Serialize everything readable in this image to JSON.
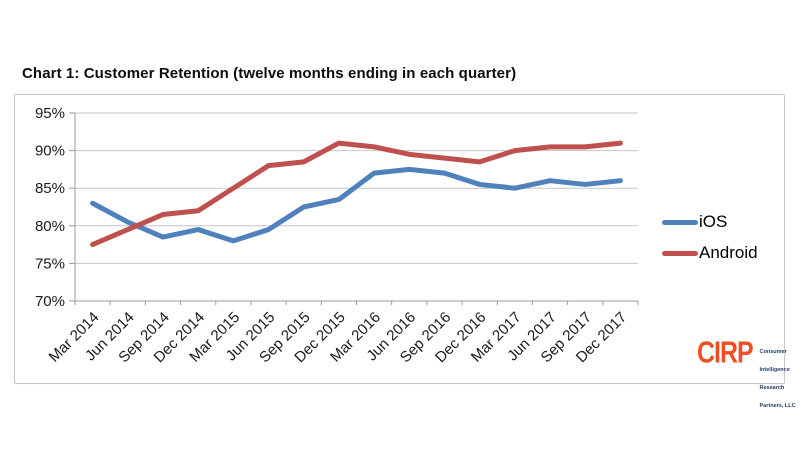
{
  "chart_data": {
    "type": "line",
    "title": "Chart 1: Customer Retention (twelve months ending in each quarter)",
    "categories": [
      "Mar 2014",
      "Jun 2014",
      "Sep 2014",
      "Dec 2014",
      "Mar 2015",
      "Jun 2015",
      "Sep 2015",
      "Dec 2015",
      "Mar 2016",
      "Jun 2016",
      "Sep 2016",
      "Dec 2016",
      "Mar 2017",
      "Jun 2017",
      "Sep 2017",
      "Dec 2017"
    ],
    "series": [
      {
        "name": "iOS",
        "color": "#4F81BD",
        "values": [
          83,
          80.5,
          78.5,
          79.5,
          78,
          79.5,
          82.5,
          83.5,
          87,
          87.5,
          87,
          85.5,
          85,
          86,
          85.5,
          86
        ]
      },
      {
        "name": "Android",
        "color": "#C0504D",
        "values": [
          77.5,
          79.5,
          81.5,
          82,
          85,
          88,
          88.5,
          91,
          90.5,
          89.5,
          89,
          88.5,
          90,
          90.5,
          90.5,
          91
        ]
      }
    ],
    "xlabel": "",
    "ylabel": "",
    "ylim": [
      70,
      95
    ],
    "ytick_step": 5,
    "ytick_labels": [
      "70%",
      "75%",
      "80%",
      "85%",
      "90%",
      "95%"
    ],
    "grid": true,
    "legend_position": "right",
    "colors": {
      "gridline": "#c6c6c6",
      "axis": "#9a9a9a",
      "tick_text": "#1a1a1a"
    }
  },
  "logo": {
    "brand": "CIRP",
    "brand_color": "#F04E23",
    "text_color": "#1F3A5F",
    "lines": [
      "Consumer",
      "Intelligence",
      "Research",
      "Partners, LLC"
    ]
  }
}
